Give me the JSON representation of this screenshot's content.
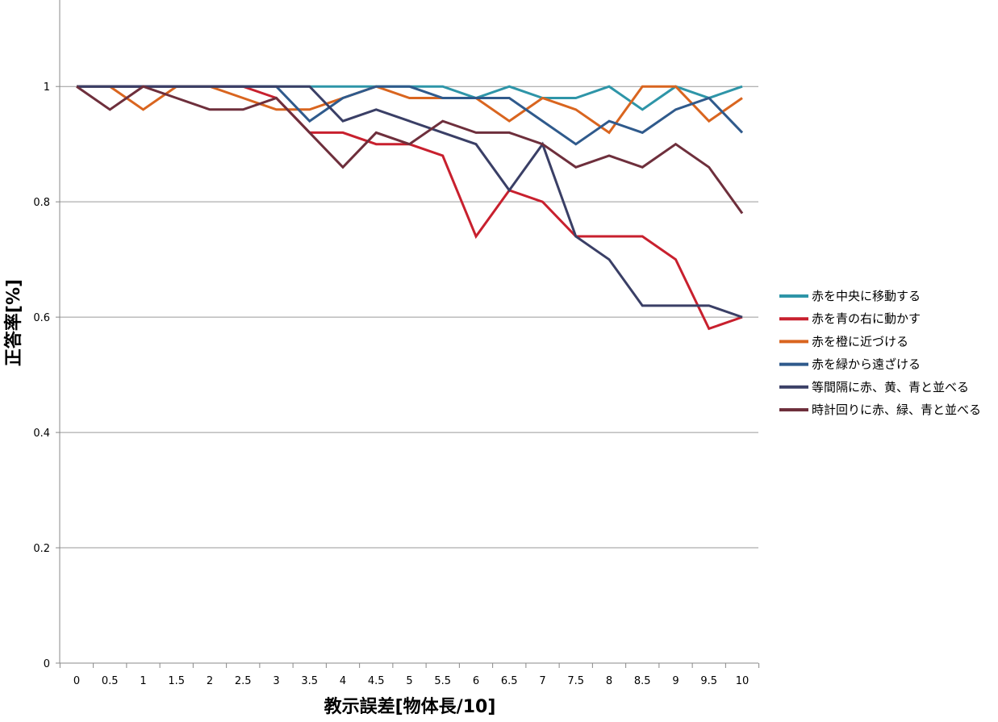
{
  "chart_data": {
    "type": "line",
    "xlabel": "教示誤差[物体長/10]",
    "ylabel": "正答率[%]",
    "categories": [
      "0",
      "0.5",
      "1",
      "1.5",
      "2",
      "2.5",
      "3",
      "3.5",
      "4",
      "4.5",
      "5",
      "5.5",
      "6",
      "6.5",
      "7",
      "7.5",
      "8",
      "8.5",
      "9",
      "9.5",
      "10"
    ],
    "y_ticks": [
      "0",
      "0.2",
      "0.4",
      "0.6",
      "0.8",
      "1"
    ],
    "ylim": [
      0,
      1.15
    ],
    "grid": true,
    "legend_position": "right",
    "series": [
      {
        "name": "赤を中央に移動する",
        "color": "#2e95a8",
        "values": [
          1,
          1,
          1,
          1,
          1,
          1,
          1,
          1,
          1,
          1,
          1,
          1,
          0.98,
          1,
          0.98,
          0.98,
          1,
          0.96,
          1,
          0.98,
          1
        ]
      },
      {
        "name": "赤を青の右に動かす",
        "color": "#c8202e",
        "values": [
          1,
          1,
          1,
          1,
          1,
          1,
          0.98,
          0.92,
          0.92,
          0.9,
          0.9,
          0.88,
          0.74,
          0.82,
          0.8,
          0.74,
          0.74,
          0.74,
          0.7,
          0.58,
          0.6
        ]
      },
      {
        "name": "赤を橙に近づける",
        "color": "#d9651f",
        "values": [
          1,
          1,
          0.96,
          1,
          1,
          0.98,
          0.96,
          0.96,
          0.98,
          1,
          0.98,
          0.98,
          0.98,
          0.94,
          0.98,
          0.96,
          0.92,
          1,
          1,
          0.94,
          0.98
        ]
      },
      {
        "name": "赤を緑から遠ざける",
        "color": "#2f5a8c",
        "values": [
          1,
          1,
          1,
          1,
          1,
          1,
          1,
          0.94,
          0.98,
          1,
          1,
          0.98,
          0.98,
          0.98,
          0.94,
          0.9,
          0.94,
          0.92,
          0.96,
          0.98,
          0.92
        ]
      },
      {
        "name": "等間隔に赤、黄、青と並べる",
        "color": "#3a3f66",
        "values": [
          1,
          1,
          1,
          1,
          1,
          1,
          1,
          1,
          0.94,
          0.96,
          0.94,
          0.92,
          0.9,
          0.82,
          0.9,
          0.74,
          0.7,
          0.62,
          0.62,
          0.62,
          0.6
        ]
      },
      {
        "name": "時計回りに赤、緑、青と並べる",
        "color": "#6e2f3c",
        "values": [
          1,
          0.96,
          1,
          0.98,
          0.96,
          0.96,
          0.98,
          0.92,
          0.86,
          0.92,
          0.9,
          0.94,
          0.92,
          0.92,
          0.9,
          0.86,
          0.88,
          0.86,
          0.9,
          0.86,
          0.78
        ]
      }
    ]
  }
}
